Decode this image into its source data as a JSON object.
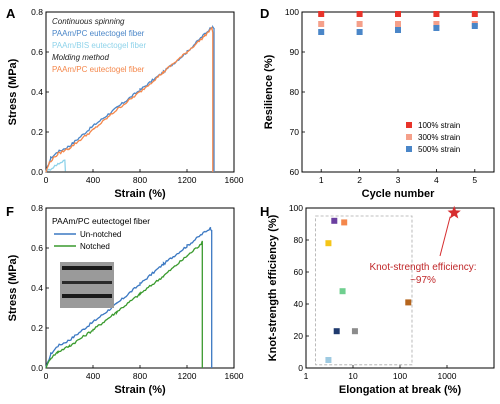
{
  "chart_data": [
    {
      "panel": "A",
      "type": "line",
      "xlabel": "Strain (%)",
      "ylabel": "Stress (MPa)",
      "xlim": [
        0,
        1600
      ],
      "ylim": [
        0,
        0.8
      ],
      "xticks": [
        0,
        400,
        800,
        1200,
        1600
      ],
      "yticks": [
        0.0,
        0.2,
        0.4,
        0.6,
        0.8
      ],
      "notes": [
        "Continuous spinning",
        "Molding method"
      ],
      "series": [
        {
          "name": "PAAm/PC eutectogel fiber",
          "color": "#4a86c8",
          "x": [
            0,
            40,
            100,
            200,
            400,
            600,
            800,
            1000,
            1200,
            1350,
            1420,
            1430,
            1430
          ],
          "y": [
            0,
            0.07,
            0.1,
            0.13,
            0.23,
            0.32,
            0.41,
            0.5,
            0.6,
            0.69,
            0.73,
            0.72,
            0
          ]
        },
        {
          "name": "PAAm/BIS eutectogel fiber",
          "color": "#8fd3ea",
          "x": [
            0,
            100,
            160,
            165
          ],
          "y": [
            0,
            0.04,
            0.06,
            0
          ]
        },
        {
          "name": "PAAm/PC eutectogel fiber",
          "color": "#f4874b",
          "x": [
            0,
            30,
            100,
            200,
            400,
            600,
            800,
            1000,
            1200,
            1350,
            1410,
            1420,
            1420
          ],
          "y": [
            0,
            0.05,
            0.09,
            0.12,
            0.21,
            0.31,
            0.4,
            0.5,
            0.6,
            0.68,
            0.72,
            0.7,
            0
          ]
        }
      ]
    },
    {
      "panel": "D",
      "type": "scatter",
      "xlabel": "Cycle number",
      "ylabel": "Resilience (%)",
      "xlim": [
        0.5,
        5.5
      ],
      "ylim": [
        60,
        100
      ],
      "xticks": [
        1,
        2,
        3,
        4,
        5
      ],
      "yticks": [
        60,
        70,
        80,
        90,
        100
      ],
      "legend": "bottom-right",
      "series": [
        {
          "name": "100% strain",
          "color": "#e8332a",
          "x": [
            1,
            2,
            3,
            4,
            5
          ],
          "y": [
            99.5,
            99.5,
            99.5,
            99.5,
            99.5
          ]
        },
        {
          "name": "300% strain",
          "color": "#f5a08a",
          "x": [
            1,
            2,
            3,
            4,
            5
          ],
          "y": [
            97,
            97,
            97,
            97,
            97
          ]
        },
        {
          "name": "500% strain",
          "color": "#4a86c8",
          "x": [
            1,
            2,
            3,
            4,
            5
          ],
          "y": [
            95,
            95,
            95.5,
            96,
            96.5
          ]
        }
      ]
    },
    {
      "panel": "F",
      "type": "line",
      "title": "PAAm/PC eutectogel fiber",
      "xlabel": "Strain (%)",
      "ylabel": "Stress (MPa)",
      "xlim": [
        0,
        1600
      ],
      "ylim": [
        0,
        0.8
      ],
      "xticks": [
        0,
        400,
        800,
        1200,
        1600
      ],
      "yticks": [
        0.0,
        0.2,
        0.4,
        0.6,
        0.8
      ],
      "legend": "top-left",
      "series": [
        {
          "name": "Un-notched",
          "color": "#3b78c2",
          "x": [
            0,
            40,
            100,
            200,
            400,
            600,
            800,
            1000,
            1200,
            1350,
            1400,
            1410,
            1410
          ],
          "y": [
            0,
            0.07,
            0.11,
            0.14,
            0.23,
            0.32,
            0.42,
            0.52,
            0.61,
            0.68,
            0.7,
            0.69,
            0
          ]
        },
        {
          "name": "Notched",
          "color": "#3a9a2e",
          "x": [
            0,
            40,
            100,
            200,
            400,
            600,
            800,
            1000,
            1200,
            1300,
            1330,
            1330
          ],
          "y": [
            0,
            0.05,
            0.08,
            0.11,
            0.19,
            0.28,
            0.37,
            0.46,
            0.56,
            0.61,
            0.63,
            0
          ]
        }
      ]
    },
    {
      "panel": "H",
      "type": "scatter",
      "xlabel": "Elongation at break (%)",
      "ylabel": "Knot-strength efficiency (%)",
      "xscale": "log",
      "xlim": [
        1,
        10000
      ],
      "ylim": [
        0,
        100
      ],
      "xticks": [
        1,
        10,
        100,
        1000
      ],
      "xticklabels": [
        "1",
        "10",
        "100",
        "1000"
      ],
      "yticks": [
        0,
        20,
        40,
        60,
        80,
        100
      ],
      "annotation": {
        "text": [
          "Knot-strength efficiency:",
          "~97%"
        ],
        "color": "#c0282a"
      },
      "star": {
        "x": 1420,
        "y": 97,
        "color": "#d62d2f"
      },
      "points": [
        {
          "x": 4.0,
          "y": 92,
          "color": "#6b3fa0"
        },
        {
          "x": 6.5,
          "y": 91,
          "color": "#f4874b"
        },
        {
          "x": 3.0,
          "y": 78,
          "color": "#f5c518"
        },
        {
          "x": 6.0,
          "y": 48,
          "color": "#6fcf8f"
        },
        {
          "x": 150,
          "y": 41,
          "color": "#b5651d"
        },
        {
          "x": 4.5,
          "y": 23,
          "color": "#1f3a6e"
        },
        {
          "x": 11,
          "y": 23,
          "color": "#8c8c8c"
        },
        {
          "x": 3.0,
          "y": 5,
          "color": "#9ecae1"
        }
      ]
    }
  ]
}
